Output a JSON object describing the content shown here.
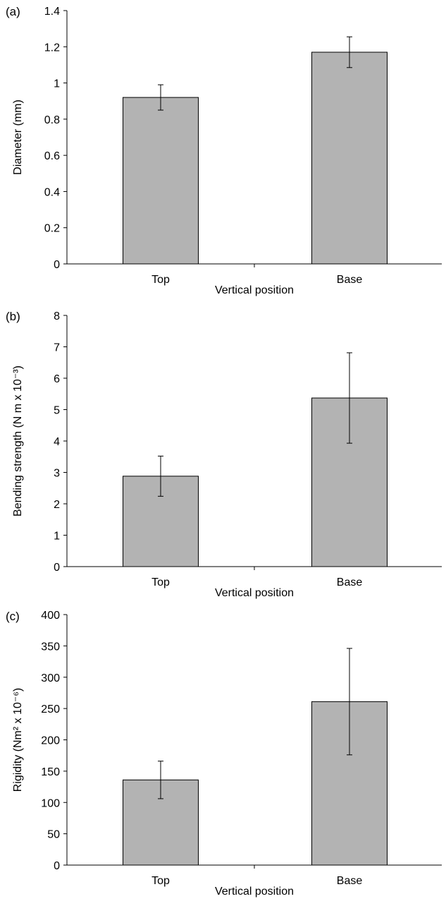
{
  "chart_data": [
    {
      "type": "bar",
      "panel_label": "(a)",
      "title": "",
      "xlabel": "Vertical position",
      "ylabel": "Diameter (mm)",
      "categories": [
        "Top",
        "Base"
      ],
      "values": [
        0.92,
        1.17
      ],
      "error": [
        0.07,
        0.085
      ],
      "ylim": [
        0,
        1.4
      ],
      "yticks": [
        "0",
        "0.2",
        "0.4",
        "0.6",
        "0.8",
        "1",
        "1.2",
        "1.4"
      ],
      "bar_color": "#b3b3b3",
      "grid": false
    },
    {
      "type": "bar",
      "panel_label": "(b)",
      "title": "",
      "xlabel": "Vertical position",
      "ylabel": "Bending strength (N m x 10⁻³)",
      "categories": [
        "Top",
        "Base"
      ],
      "values": [
        2.88,
        5.37
      ],
      "error": [
        0.64,
        1.44
      ],
      "ylim": [
        0,
        8
      ],
      "yticks": [
        "0",
        "1",
        "2",
        "3",
        "4",
        "5",
        "6",
        "7",
        "8"
      ],
      "bar_color": "#b3b3b3",
      "grid": false
    },
    {
      "type": "bar",
      "panel_label": "(c)",
      "title": "",
      "xlabel": "Vertical position",
      "ylabel": "Rigidity (Nm² x 10⁻⁶)",
      "categories": [
        "Top",
        "Base"
      ],
      "values": [
        136,
        261
      ],
      "error": [
        30,
        85
      ],
      "ylim": [
        0,
        400
      ],
      "yticks": [
        "0",
        "50",
        "100",
        "150",
        "200",
        "250",
        "300",
        "350",
        "400"
      ],
      "bar_color": "#b3b3b3",
      "grid": false
    }
  ]
}
